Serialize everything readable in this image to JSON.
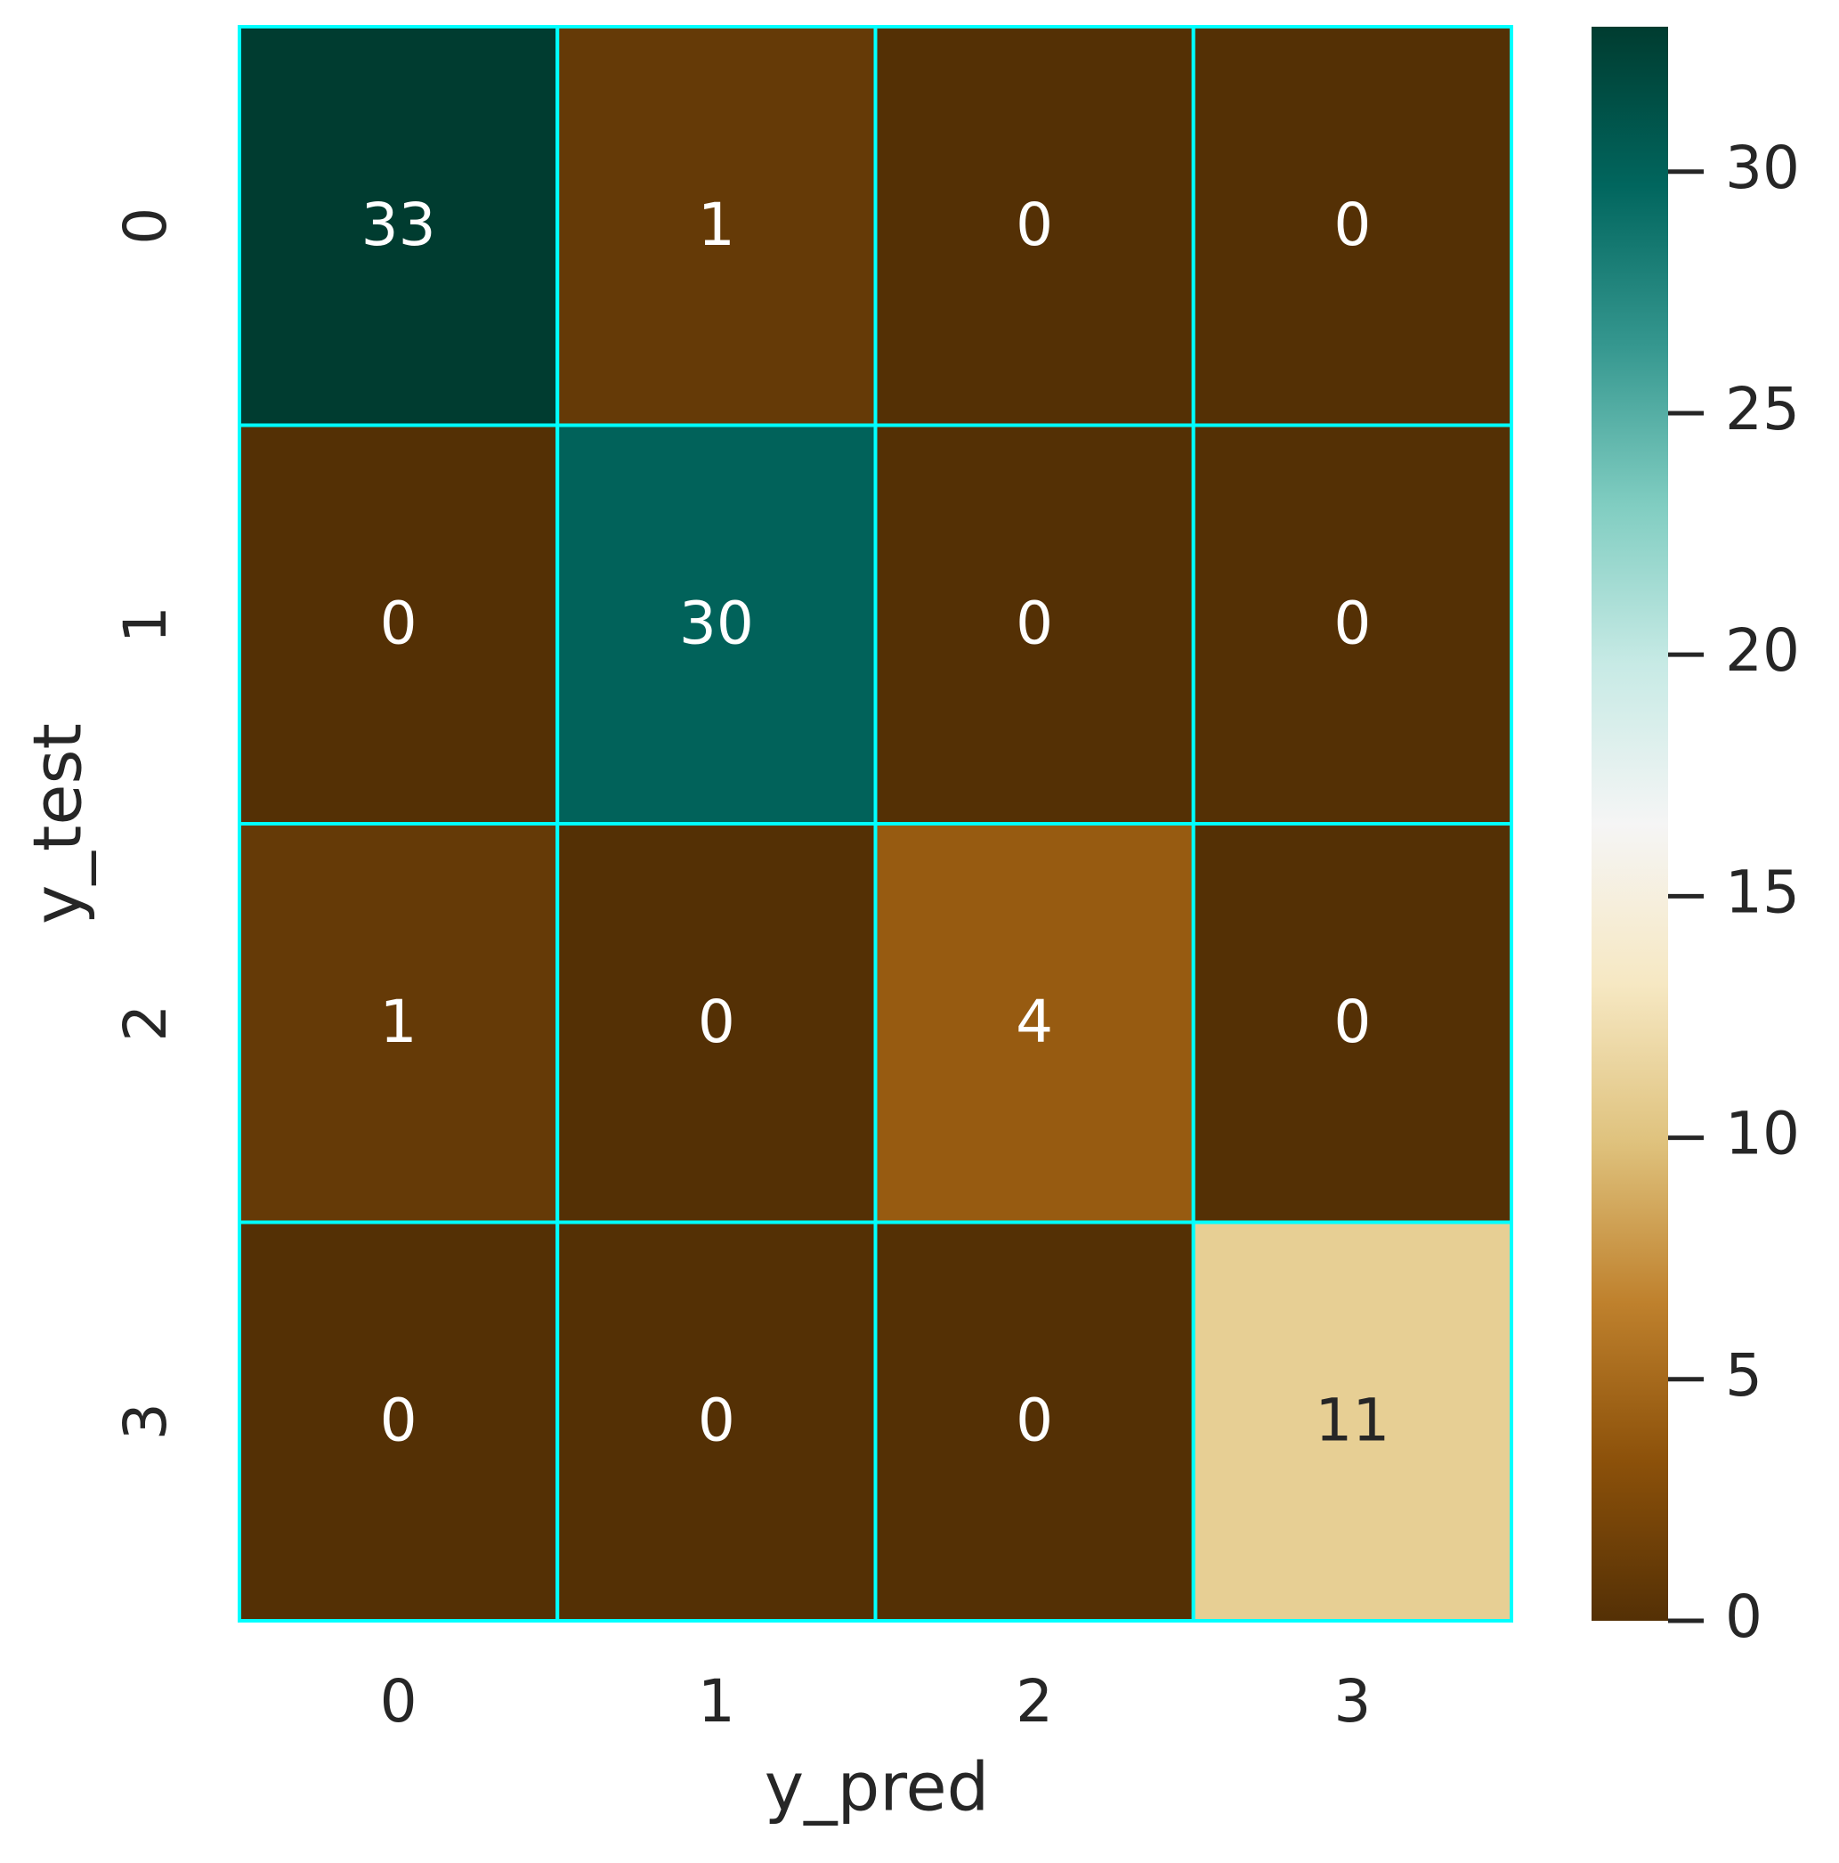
{
  "chart_data": {
    "type": "heatmap",
    "x_label": "y_pred",
    "y_label": "y_test",
    "x_categories": [
      "0",
      "1",
      "2",
      "3"
    ],
    "y_categories": [
      "0",
      "1",
      "2",
      "3"
    ],
    "values": [
      [
        33,
        1,
        0,
        0
      ],
      [
        0,
        30,
        0,
        0
      ],
      [
        1,
        0,
        4,
        0
      ],
      [
        0,
        0,
        0,
        11
      ]
    ],
    "colorscale": [
      "#543005",
      "#8c510a",
      "#bf812d",
      "#dfc27d",
      "#f6e8c3",
      "#f5f5f5",
      "#c7eae5",
      "#80cdc1",
      "#35978f",
      "#01665e",
      "#003c30"
    ],
    "clim": [
      0,
      33
    ],
    "cticks": [
      0,
      5,
      10,
      15,
      20,
      25,
      30
    ],
    "line_color": "#00ffff"
  }
}
